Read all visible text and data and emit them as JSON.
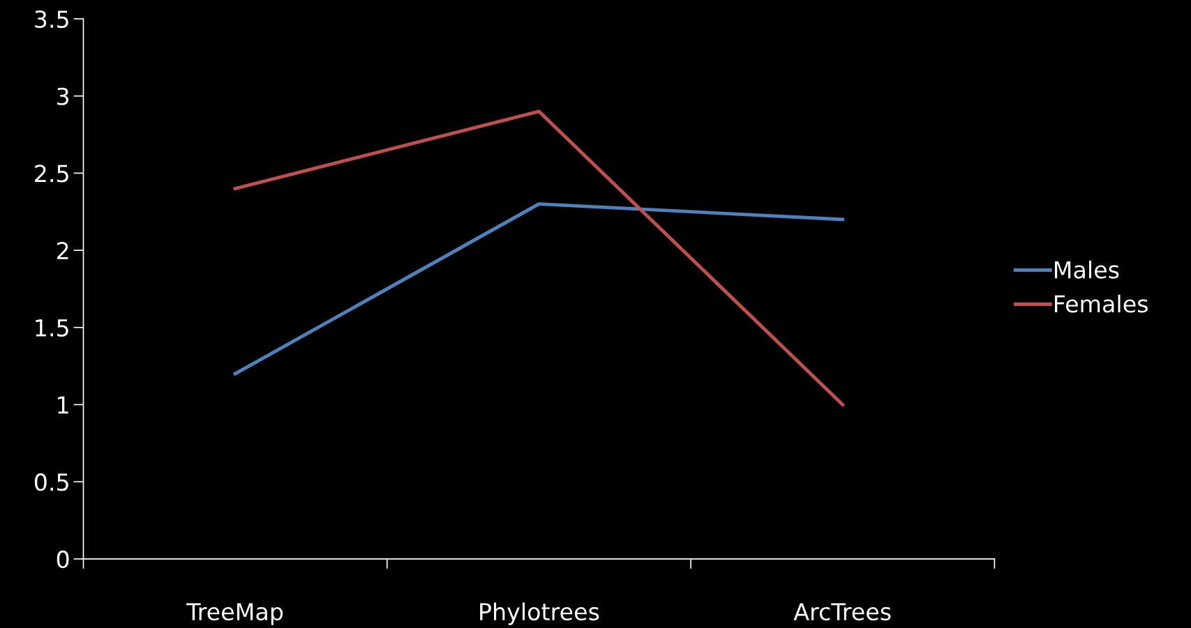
{
  "chart_data": {
    "type": "line",
    "categories": [
      "TreeMap",
      "Phylotrees",
      "ArcTrees"
    ],
    "series": [
      {
        "name": "Males",
        "color": "#4f81bd",
        "values": [
          1.2,
          2.3,
          2.2
        ]
      },
      {
        "name": "Females",
        "color": "#c0504d",
        "values": [
          2.4,
          2.9,
          1.0
        ]
      }
    ],
    "ylim": [
      0,
      3.5
    ],
    "yticks": [
      0,
      0.5,
      1,
      1.5,
      2,
      2.5,
      3,
      3.5
    ],
    "grid": false,
    "legend": "right",
    "marker": "none",
    "line_style": "solid"
  }
}
